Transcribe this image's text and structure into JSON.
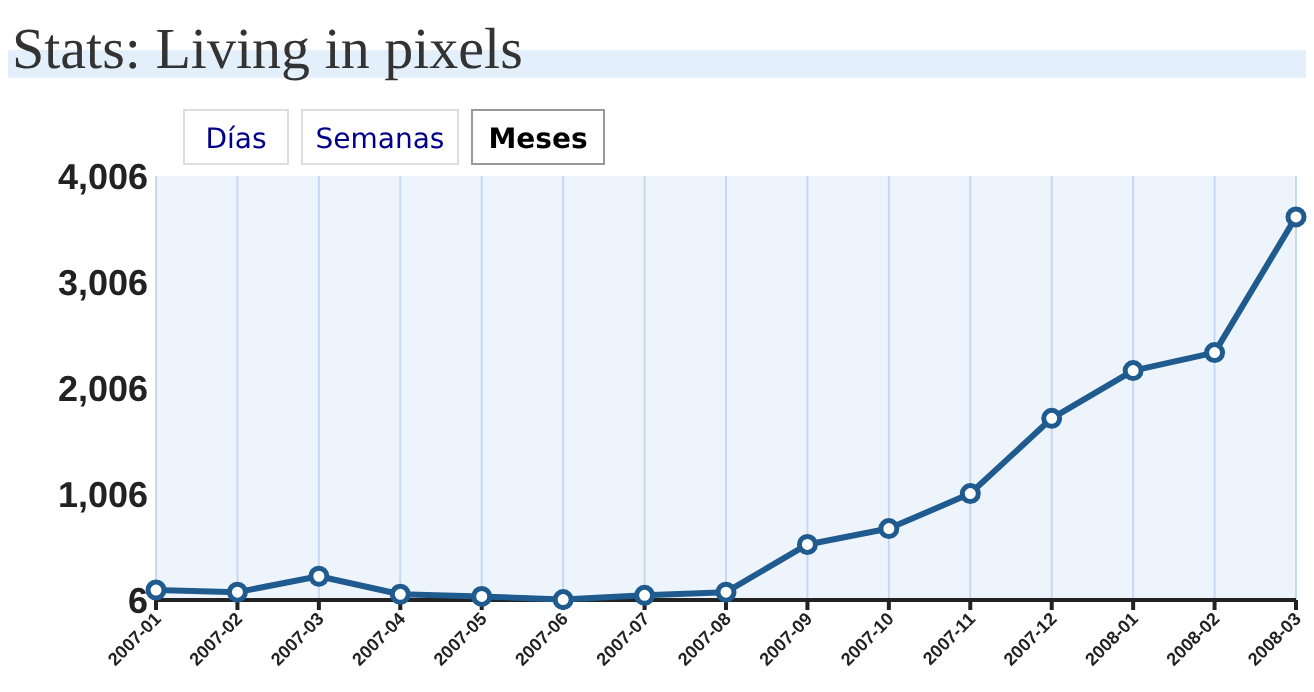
{
  "chart_data": {
    "type": "line",
    "title": "Stats: Living in pixels",
    "annotations": [
      "Días",
      "Semanas",
      "Meses"
    ],
    "categories": [
      "2007-01",
      "2007-02",
      "2007-03",
      "2007-04",
      "2007-05",
      "2007-06",
      "2007-07",
      "2007-08",
      "2007-09",
      "2007-10",
      "2007-11",
      "2007-12",
      "2008-01",
      "2008-02",
      "2008-03"
    ],
    "series": [
      {
        "color": "#1f5b8e",
        "values": [
          100,
          80,
          230,
          60,
          40,
          10,
          50,
          80,
          530,
          680,
          1010,
          1720,
          2170,
          2340,
          3620
        ]
      }
    ],
    "ylim": [
      6,
      4006
    ],
    "yticks": [
      6,
      {
        "value": 1006,
        "label": "1,006"
      },
      {
        "value": 2006,
        "label": "2,006"
      },
      {
        "value": 3006,
        "label": "3,006"
      },
      {
        "value": 4006,
        "label": "4,006"
      }
    ],
    "grid": "x",
    "marker": "circle",
    "line_style": "solid"
  }
}
